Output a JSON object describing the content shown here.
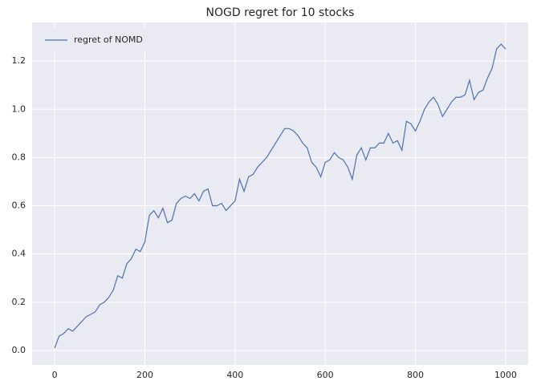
{
  "chart_data": {
    "type": "line",
    "title": "NOGD regret for 10 stocks",
    "x": [
      0,
      10,
      20,
      30,
      40,
      50,
      60,
      70,
      80,
      90,
      100,
      110,
      120,
      130,
      140,
      150,
      160,
      170,
      180,
      190,
      200,
      210,
      220,
      230,
      240,
      250,
      260,
      270,
      280,
      290,
      300,
      310,
      320,
      330,
      340,
      350,
      360,
      370,
      380,
      390,
      400,
      410,
      420,
      430,
      440,
      450,
      460,
      470,
      480,
      490,
      500,
      510,
      520,
      530,
      540,
      550,
      560,
      570,
      580,
      590,
      600,
      610,
      620,
      630,
      640,
      650,
      660,
      670,
      680,
      690,
      700,
      710,
      720,
      730,
      740,
      750,
      760,
      770,
      780,
      790,
      800,
      810,
      820,
      830,
      840,
      850,
      860,
      870,
      880,
      890,
      900,
      910,
      920,
      930,
      940,
      950,
      960,
      970,
      980,
      990,
      1000
    ],
    "series": [
      {
        "name": "regret of NOMD",
        "color": "#4c72b0",
        "values": [
          0.01,
          0.06,
          0.07,
          0.09,
          0.08,
          0.1,
          0.12,
          0.14,
          0.15,
          0.16,
          0.19,
          0.2,
          0.22,
          0.25,
          0.31,
          0.3,
          0.36,
          0.38,
          0.42,
          0.41,
          0.45,
          0.56,
          0.58,
          0.55,
          0.59,
          0.53,
          0.54,
          0.61,
          0.63,
          0.64,
          0.63,
          0.65,
          0.62,
          0.66,
          0.67,
          0.6,
          0.6,
          0.61,
          0.58,
          0.6,
          0.62,
          0.71,
          0.66,
          0.72,
          0.73,
          0.76,
          0.78,
          0.8,
          0.83,
          0.86,
          0.89,
          0.92,
          0.92,
          0.91,
          0.89,
          0.86,
          0.84,
          0.78,
          0.76,
          0.72,
          0.78,
          0.79,
          0.82,
          0.8,
          0.79,
          0.76,
          0.71,
          0.81,
          0.84,
          0.79,
          0.84,
          0.84,
          0.86,
          0.86,
          0.9,
          0.86,
          0.87,
          0.83,
          0.95,
          0.94,
          0.91,
          0.95,
          1.0,
          1.03,
          1.05,
          1.02,
          0.97,
          1.0,
          1.03,
          1.05,
          1.05,
          1.06,
          1.12,
          1.04,
          1.07,
          1.08,
          1.13,
          1.17,
          1.25,
          1.27,
          1.25
        ]
      }
    ],
    "xlim": [
      -50,
      1050
    ],
    "xticks": [
      0,
      200,
      400,
      600,
      800,
      1000
    ],
    "ylim": [
      -0.06,
      1.36
    ],
    "yticks": [
      {
        "value": 0,
        "label": "0.0"
      },
      0.2,
      0.4,
      0.6,
      0.8,
      {
        "value": 1,
        "label": "1.0"
      },
      1.2
    ],
    "grid": true,
    "legend": "upper-left"
  }
}
